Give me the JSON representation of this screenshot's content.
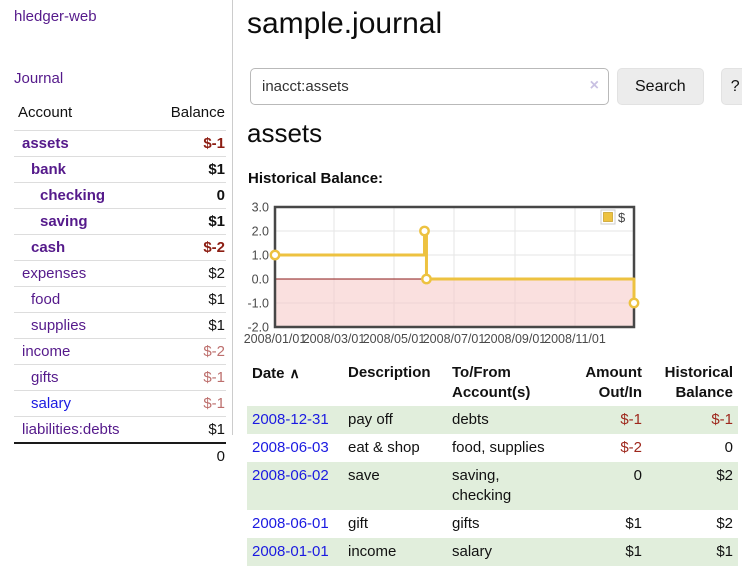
{
  "sidebar": {
    "brand": "hledger-web",
    "nav": {
      "journal_label": "Journal"
    },
    "accounts": {
      "headers": {
        "account": "Account",
        "balance": "Balance"
      },
      "rows": [
        {
          "name": "assets",
          "balance": "$-1",
          "depth": 0,
          "bold": true,
          "tone": "neg-strong"
        },
        {
          "name": "bank",
          "balance": "$1",
          "depth": 1,
          "bold": true,
          "tone": null
        },
        {
          "name": "checking",
          "balance": "0",
          "depth": 2,
          "bold": true,
          "tone": null
        },
        {
          "name": "saving",
          "balance": "$1",
          "depth": 2,
          "bold": true,
          "tone": null
        },
        {
          "name": "cash",
          "balance": "$-2",
          "depth": 1,
          "bold": true,
          "tone": "neg-strong"
        },
        {
          "name": "expenses",
          "balance": "$2",
          "depth": 0,
          "bold": false,
          "tone": null
        },
        {
          "name": "food",
          "balance": "$1",
          "depth": 1,
          "bold": false,
          "tone": null
        },
        {
          "name": "supplies",
          "balance": "$1",
          "depth": 1,
          "bold": false,
          "tone": null
        },
        {
          "name": "income",
          "balance": "$-2",
          "depth": 0,
          "bold": false,
          "tone": "neg-muted"
        },
        {
          "name": "gifts",
          "balance": "$-1",
          "depth": 1,
          "bold": false,
          "tone": "neg-muted"
        },
        {
          "name": "salary",
          "balance": "$-1",
          "depth": 1,
          "bold": false,
          "tone": "neg-muted",
          "blue": true
        },
        {
          "name": "liabilities:debts",
          "balance": "$1",
          "depth": 0,
          "bold": false,
          "tone": null
        }
      ],
      "total": "0"
    }
  },
  "main": {
    "title": "sample.journal",
    "search": {
      "value": "inacct:assets",
      "clear_icon": "×",
      "button_label": "Search",
      "help_label": "?"
    },
    "account_heading": "assets",
    "chart_label": "Historical Balance:",
    "register": {
      "headers": {
        "date": "Date",
        "description": "Description",
        "accounts": "To/From Account(s)",
        "amount": "Amount Out/In",
        "balance": "Historical Balance"
      },
      "sort_icon": "∧",
      "rows": [
        {
          "date": "2008-12-31",
          "description": "pay off",
          "accounts": "debts",
          "amount": "$-1",
          "balance": "$-1",
          "amount_neg": true,
          "balance_neg": true
        },
        {
          "date": "2008-06-03",
          "description": "eat & shop",
          "accounts": "food, supplies",
          "amount": "$-2",
          "balance": "0",
          "amount_neg": true,
          "balance_neg": false
        },
        {
          "date": "2008-06-02",
          "description": "save",
          "accounts": "saving, checking",
          "amount": "0",
          "balance": "$2",
          "amount_neg": false,
          "balance_neg": false
        },
        {
          "date": "2008-06-01",
          "description": "gift",
          "accounts": "gifts",
          "amount": "$1",
          "balance": "$2",
          "amount_neg": false,
          "balance_neg": false
        },
        {
          "date": "2008-01-01",
          "description": "income",
          "accounts": "salary",
          "amount": "$1",
          "balance": "$1",
          "amount_neg": false,
          "balance_neg": false
        }
      ]
    }
  },
  "chart_data": {
    "type": "line",
    "title": "Historical Balance:",
    "step": true,
    "x_range": [
      "2008-01-01",
      "2008-12-31"
    ],
    "ylim": [
      -2,
      3
    ],
    "y_ticks": [
      3.0,
      2.0,
      1.0,
      0.0,
      -1.0,
      -2.0
    ],
    "x_ticks": [
      {
        "label": "2008/01/01",
        "date": "2008-01-01"
      },
      {
        "label": "2008/03/01",
        "date": "2008-03-01"
      },
      {
        "label": "2008/05/01",
        "date": "2008-05-01"
      },
      {
        "label": "2008/07/01",
        "date": "2008-07-01"
      },
      {
        "label": "2008/09/01",
        "date": "2008-09-01"
      },
      {
        "label": "2008/11/01",
        "date": "2008-11-01"
      }
    ],
    "series": [
      {
        "name": "$",
        "color": "#edc240",
        "points": [
          {
            "date": "2008-01-01",
            "value": 1
          },
          {
            "date": "2008-06-01",
            "value": 2
          },
          {
            "date": "2008-06-03",
            "value": 0
          },
          {
            "date": "2008-12-31",
            "value": -1
          }
        ]
      }
    ],
    "legend_position": "top-right",
    "grid": true,
    "colors": {
      "grid": "#e6e6e6",
      "border": "#474747",
      "tick_text": "#4a4a4a",
      "negative_region": "#f6c7c4",
      "zero_line": "#8b1a1a",
      "marker_fill": "#ffffff"
    }
  }
}
